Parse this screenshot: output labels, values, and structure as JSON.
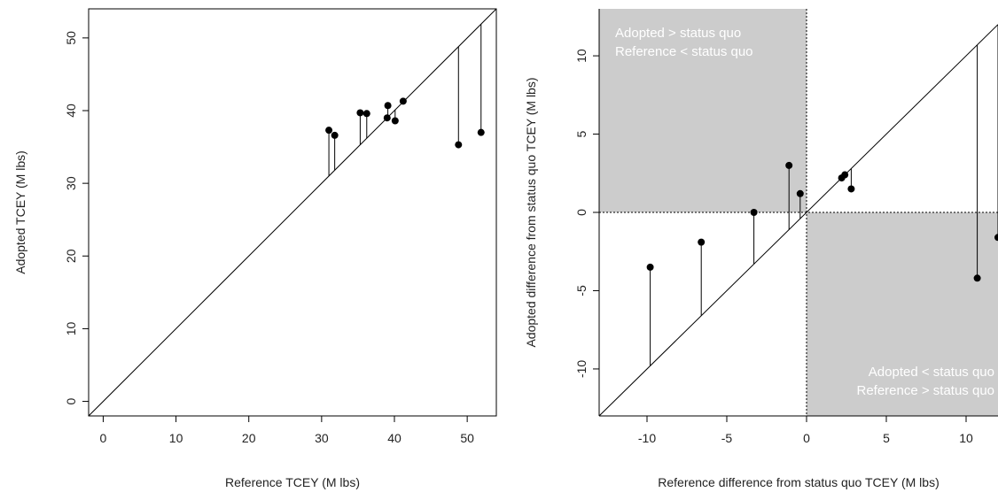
{
  "chart_data": [
    {
      "type": "scatter",
      "title": "",
      "xlabel": "Reference TCEY (M lbs)",
      "ylabel": "Adopted TCEY (M lbs)",
      "xlim": [
        -2,
        54
      ],
      "ylim": [
        -2,
        54
      ],
      "x_ticks": [
        0,
        10,
        20,
        30,
        40,
        50
      ],
      "y_ticks": [
        0,
        10,
        20,
        30,
        40,
        50
      ],
      "reference_line": "y = x",
      "points": [
        {
          "x": 31.0,
          "y": 37.3
        },
        {
          "x": 31.8,
          "y": 36.6
        },
        {
          "x": 35.3,
          "y": 39.7
        },
        {
          "x": 36.2,
          "y": 39.6
        },
        {
          "x": 39.0,
          "y": 39.0
        },
        {
          "x": 39.1,
          "y": 40.7
        },
        {
          "x": 40.1,
          "y": 38.6
        },
        {
          "x": 41.2,
          "y": 41.3
        },
        {
          "x": 48.8,
          "y": 35.3
        },
        {
          "x": 51.9,
          "y": 37.0
        }
      ]
    },
    {
      "type": "scatter",
      "title": "",
      "xlabel": "Reference difference from status quo TCEY (M lbs)",
      "ylabel": "Adopted difference from status quo TCEY (M lbs)",
      "xlim": [
        -13,
        12
      ],
      "ylim": [
        -13,
        13
      ],
      "x_ticks": [
        -10,
        -5,
        0,
        5,
        10
      ],
      "y_ticks": [
        -10,
        -5,
        0,
        5,
        10
      ],
      "reference_line": "y = x",
      "shaded_regions": [
        {
          "quadrant": "top-left",
          "labels": [
            "Adopted > status quo",
            "Reference < status quo"
          ]
        },
        {
          "quadrant": "bottom-right",
          "labels": [
            "Adopted < status quo",
            "Reference > status quo"
          ]
        }
      ],
      "points": [
        {
          "x": -9.8,
          "y": -3.5
        },
        {
          "x": -6.6,
          "y": -1.9
        },
        {
          "x": -3.3,
          "y": 0.0
        },
        {
          "x": -1.1,
          "y": 3.0
        },
        {
          "x": -0.4,
          "y": 1.2
        },
        {
          "x": 2.2,
          "y": 2.2
        },
        {
          "x": 2.4,
          "y": 2.4
        },
        {
          "x": 2.8,
          "y": 1.5
        },
        {
          "x": 10.7,
          "y": -4.2
        },
        {
          "x": 12.0,
          "y": -1.6
        }
      ]
    }
  ]
}
